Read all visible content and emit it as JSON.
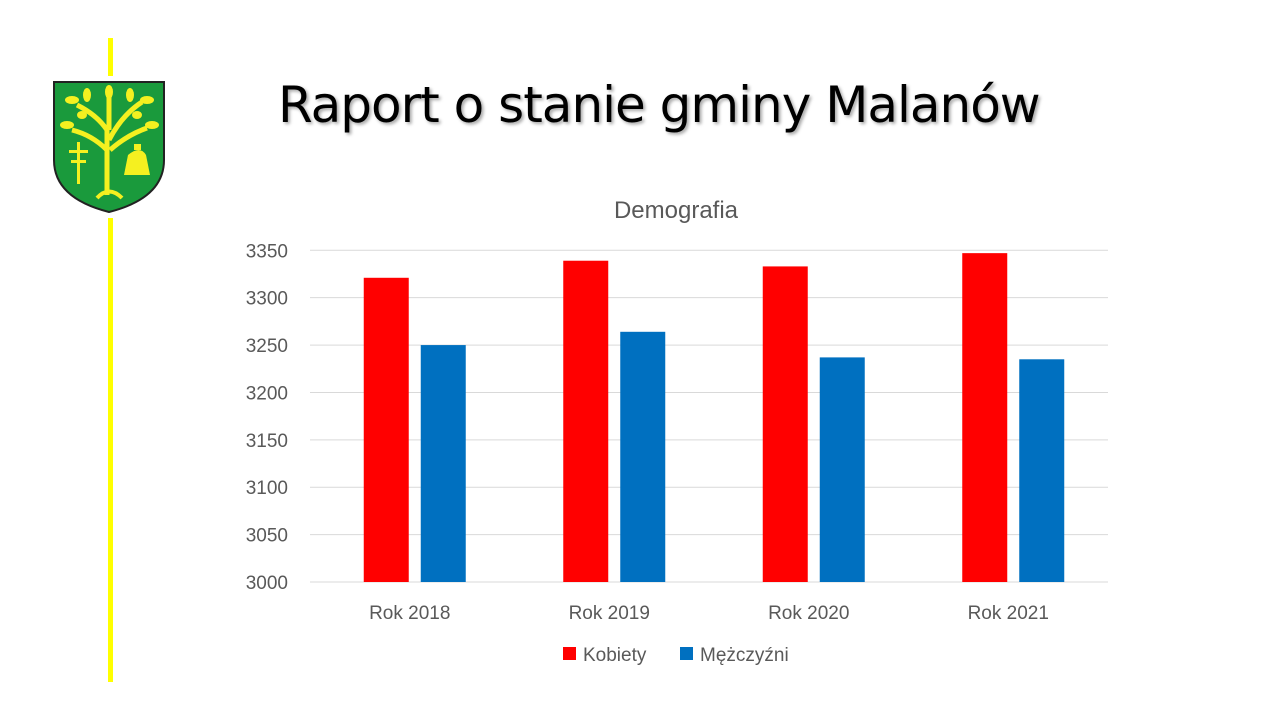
{
  "slide": {
    "title": "Raport o stanie gminy Malanów",
    "accent_color": "#ffff00"
  },
  "chart_data": {
    "type": "bar",
    "title": "Demografia",
    "categories": [
      "Rok 2018",
      "Rok 2019",
      "Rok 2020",
      "Rok 2021"
    ],
    "series": [
      {
        "name": "Kobiety",
        "color": "#ff0000",
        "values": [
          3321,
          3339,
          3333,
          3347
        ]
      },
      {
        "name": "Mężczyźni",
        "color": "#0070c0",
        "values": [
          3250,
          3264,
          3237,
          3235
        ]
      }
    ],
    "ylim": [
      3000,
      3350
    ],
    "yticks": [
      3000,
      3050,
      3100,
      3150,
      3200,
      3250,
      3300,
      3350
    ],
    "grid": true,
    "legend": "bottom",
    "xlabel": "",
    "ylabel": ""
  }
}
